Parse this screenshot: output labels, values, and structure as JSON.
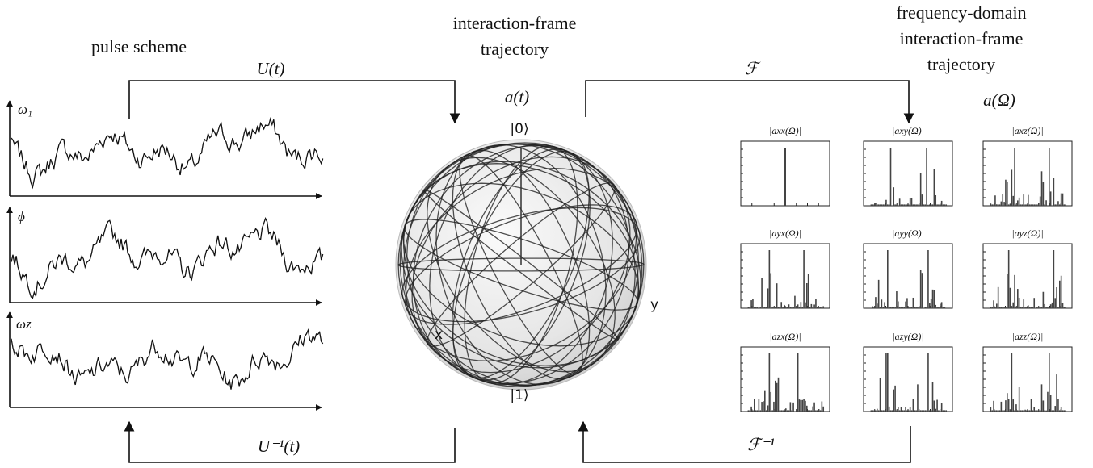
{
  "pulse_scheme": {
    "title": "pulse scheme",
    "axes": [
      "ω₁",
      "ϕ",
      "ωz"
    ]
  },
  "time_domain": {
    "title_lines": [
      "interaction-frame",
      "trajectory"
    ],
    "label": "a(t)",
    "states": [
      "|0⟩",
      "|1⟩"
    ],
    "axes": [
      "x",
      "y"
    ]
  },
  "frequency_domain": {
    "title_lines": [
      "frequency-domain",
      "interaction-frame",
      "trajectory"
    ],
    "label": "a(Ω)",
    "panels": [
      "|axx(Ω)|",
      "|axy(Ω)|",
      "|axz(Ω)|",
      "|ayx(Ω)|",
      "|ayy(Ω)|",
      "|ayz(Ω)|",
      "|azx(Ω)|",
      "|azy(Ω)|",
      "|azz(Ω)|"
    ]
  },
  "arrows": {
    "forward_time": "U(t)",
    "inverse_time": "U⁻¹(t)",
    "forward_freq": "ℱ",
    "inverse_freq": "ℱ⁻¹"
  }
}
